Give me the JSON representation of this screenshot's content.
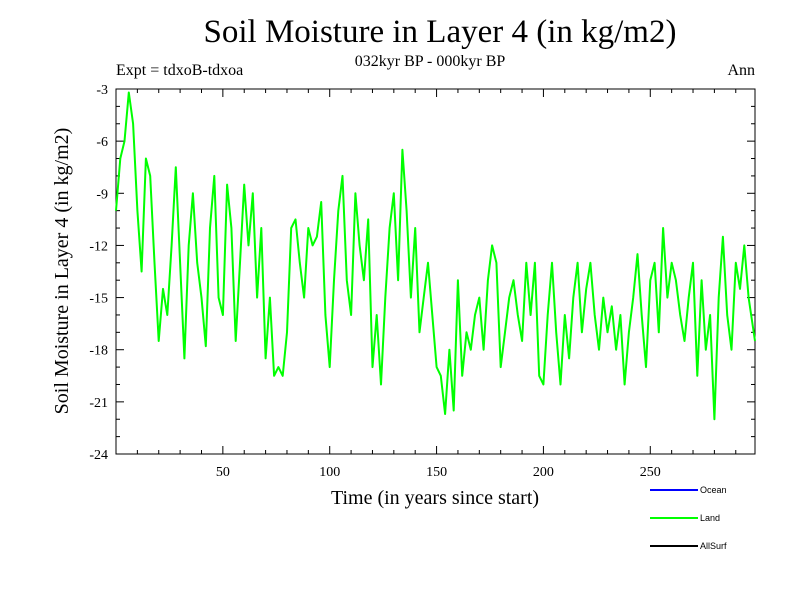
{
  "header": {
    "title": "Soil Moisture in Layer 4 (in kg/m2)",
    "subtitle": "032kyr BP - 000kyr BP",
    "expt": "Expt = tdxoB-tdxoa",
    "period": "Ann"
  },
  "chart_data": {
    "type": "line",
    "title": "Soil Moisture in Layer 4 (in kg/m2)",
    "xlabel": "Time (in years since start)",
    "ylabel": "Soil Moisture in Layer 4 (in kg/m2)",
    "xlim": [
      0,
      299
    ],
    "ylim": [
      -24,
      -3
    ],
    "xticks": [
      50,
      100,
      150,
      200,
      250
    ],
    "xtick_labels": [
      "50",
      "100",
      "150",
      "200",
      "250"
    ],
    "yticks": [
      -3,
      -6,
      -9,
      -12,
      -15,
      -18,
      -21,
      -24
    ],
    "ytick_labels": [
      "-3",
      "-6",
      "-9",
      "-12",
      "-15",
      "-18",
      "-21",
      "-24"
    ],
    "grid": false,
    "legend_position": "bottom-right",
    "legend": [
      {
        "name": "Ocean",
        "color": "#0000ff"
      },
      {
        "name": "Land",
        "color": "#00ff00"
      },
      {
        "name": "AllSurf",
        "color": "#000000"
      }
    ],
    "series": [
      {
        "name": "Land",
        "color": "#00ff00",
        "x": [
          0,
          2,
          4,
          6,
          8,
          10,
          12,
          14,
          16,
          18,
          20,
          22,
          24,
          26,
          28,
          30,
          32,
          34,
          36,
          38,
          40,
          42,
          44,
          46,
          48,
          50,
          52,
          54,
          56,
          58,
          60,
          62,
          64,
          66,
          68,
          70,
          72,
          74,
          76,
          78,
          80,
          82,
          84,
          86,
          88,
          90,
          92,
          94,
          96,
          98,
          100,
          102,
          104,
          106,
          108,
          110,
          112,
          114,
          116,
          118,
          120,
          122,
          124,
          126,
          128,
          130,
          132,
          134,
          136,
          138,
          140,
          142,
          144,
          146,
          148,
          150,
          152,
          154,
          156,
          158,
          160,
          162,
          164,
          166,
          168,
          170,
          172,
          174,
          176,
          178,
          180,
          182,
          184,
          186,
          188,
          190,
          192,
          194,
          196,
          198,
          200,
          202,
          204,
          206,
          208,
          210,
          212,
          214,
          216,
          218,
          220,
          222,
          224,
          226,
          228,
          230,
          232,
          234,
          236,
          238,
          240,
          242,
          244,
          246,
          248,
          250,
          252,
          254,
          256,
          258,
          260,
          262,
          264,
          266,
          268,
          270,
          272,
          274,
          276,
          278,
          280,
          282,
          284,
          286,
          288,
          290,
          292,
          294,
          296,
          299
        ],
        "y": [
          -10,
          -7,
          -6,
          -3.2,
          -5,
          -10,
          -13.5,
          -7,
          -8,
          -13,
          -17.5,
          -14.5,
          -16,
          -12,
          -7.5,
          -13,
          -18.5,
          -12,
          -9,
          -13,
          -15,
          -17.8,
          -11,
          -8,
          -15,
          -16,
          -8.5,
          -11,
          -17.5,
          -13,
          -8.5,
          -12,
          -9,
          -15,
          -11,
          -18.5,
          -15,
          -19.5,
          -19,
          -19.5,
          -17,
          -11,
          -10.5,
          -13,
          -15,
          -11,
          -12,
          -11.5,
          -9.5,
          -16,
          -19,
          -14,
          -10,
          -8,
          -14,
          -16,
          -9,
          -12,
          -14,
          -10.5,
          -19,
          -16,
          -20,
          -15,
          -11,
          -9,
          -14,
          -6.5,
          -10,
          -15,
          -11,
          -17,
          -15,
          -13,
          -16,
          -19,
          -19.5,
          -21.7,
          -18,
          -21.5,
          -14,
          -19.5,
          -17,
          -18,
          -16,
          -15,
          -18,
          -14,
          -12,
          -13,
          -19,
          -17,
          -15,
          -14,
          -16,
          -17.5,
          -13,
          -16,
          -13,
          -19.5,
          -20,
          -16,
          -13,
          -17,
          -20,
          -16,
          -18.5,
          -15,
          -13,
          -17,
          -14.5,
          -13,
          -16,
          -18,
          -15,
          -17,
          -15.5,
          -18,
          -16,
          -20,
          -17,
          -15,
          -12.5,
          -16,
          -19,
          -14,
          -13,
          -17,
          -11,
          -15,
          -13,
          -14,
          -16,
          -17.5,
          -15,
          -13,
          -19.5,
          -14,
          -18,
          -16,
          -22,
          -15,
          -11.5,
          -16,
          -18,
          -13,
          -14.5,
          -12,
          -15,
          -17.5
        ]
      }
    ]
  }
}
